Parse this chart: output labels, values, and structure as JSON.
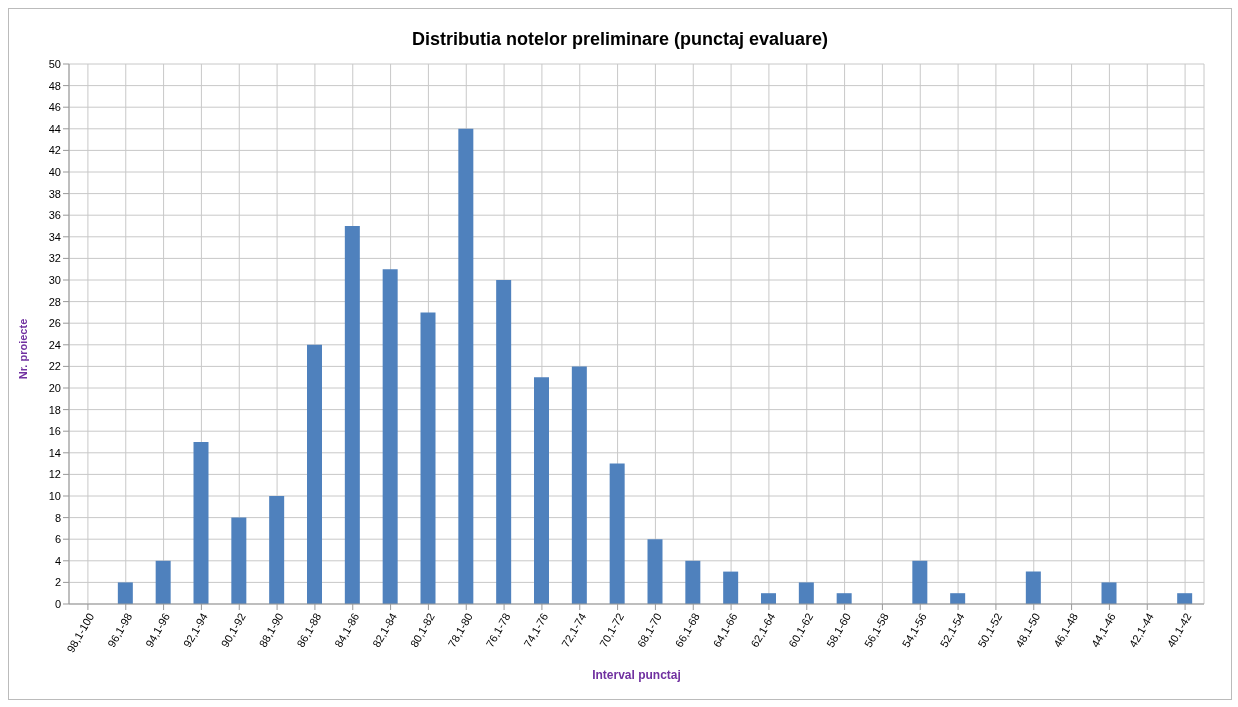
{
  "chart_data": {
    "type": "bar",
    "title": "Distributia notelor preliminare (punctaj evaluare)",
    "xlabel": "Interval punctaj",
    "ylabel": "Nr. proiecte",
    "categories": [
      "98,1-100",
      "96,1-98",
      "94,1-96",
      "92,1-94",
      "90,1-92",
      "88,1-90",
      "86,1-88",
      "84,1-86",
      "82,1-84",
      "80,1-82",
      "78,1-80",
      "76,1-78",
      "74,1-76",
      "72,1-74",
      "70,1-72",
      "68,1-70",
      "66,1-68",
      "64,1-66",
      "62,1-64",
      "60,1-62",
      "58,1-60",
      "56,1-58",
      "54,1-56",
      "52,1-54",
      "50,1-52",
      "48,1-50",
      "46,1-48",
      "44,1-46",
      "42,1-44",
      "40,1-42"
    ],
    "values": [
      0,
      2,
      4,
      15,
      8,
      10,
      24,
      35,
      31,
      27,
      44,
      30,
      21,
      22,
      13,
      6,
      4,
      3,
      1,
      2,
      1,
      0,
      4,
      1,
      0,
      3,
      0,
      2,
      0,
      1
    ],
    "color": "#4f81bd",
    "ylim": [
      0,
      50
    ],
    "yticks": [
      0,
      2,
      4,
      6,
      8,
      10,
      12,
      14,
      16,
      18,
      20,
      22,
      24,
      26,
      28,
      30,
      32,
      34,
      36,
      38,
      40,
      42,
      44,
      46,
      48,
      50
    ],
    "grid": true,
    "legend": false
  }
}
